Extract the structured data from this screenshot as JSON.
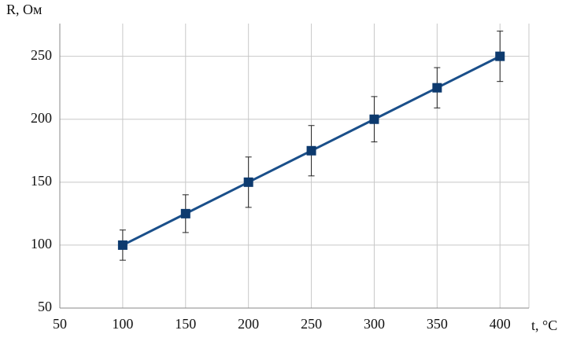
{
  "chart_data": {
    "type": "line",
    "x_label": "t, °C",
    "y_label": "R, Ом",
    "x": [
      100,
      150,
      200,
      250,
      300,
      350,
      400
    ],
    "series": [
      {
        "color": "#1a4f8a",
        "marker_color": "#0d3a6e",
        "values": [
          100,
          125,
          150,
          175,
          200,
          225,
          250
        ],
        "errors": [
          12,
          15,
          20,
          20,
          18,
          16,
          20
        ]
      }
    ],
    "xlim": [
      50,
      423
    ],
    "ylim": [
      50,
      276
    ],
    "xticks": [
      50,
      100,
      150,
      200,
      250,
      300,
      350,
      400
    ],
    "yticks": [
      50,
      100,
      150,
      200,
      250
    ],
    "grid": true
  }
}
